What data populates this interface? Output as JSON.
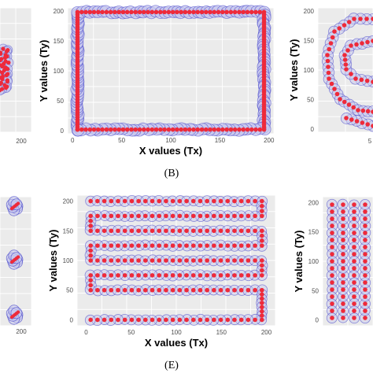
{
  "chart_data": [
    {
      "type": "scatter",
      "panel": "A",
      "xlabel": "",
      "ylabel": "",
      "x_ticks": [
        "200"
      ],
      "y_ticks": []
    },
    {
      "type": "scatter",
      "panel": "B",
      "caption": "(B)",
      "xlabel": "X values (Tx)",
      "ylabel": "Y values (Ty)",
      "xlim": [
        -5,
        205
      ],
      "ylim": [
        -5,
        205
      ],
      "x_ticks": [
        "0",
        "50",
        "100",
        "150",
        "200"
      ],
      "y_ticks": [
        "0",
        "50",
        "100",
        "150",
        "200"
      ],
      "path": "rectangle",
      "vertices": [
        [
          5,
          2
        ],
        [
          5,
          198
        ],
        [
          195,
          198
        ],
        [
          195,
          2
        ],
        [
          5,
          2
        ]
      ],
      "grid": true
    },
    {
      "type": "scatter",
      "panel": "C",
      "xlabel": "",
      "ylabel": "Y values (Ty)",
      "y_ticks": [
        "0",
        "50",
        "100",
        "150",
        "200"
      ],
      "x_ticks": [
        "5"
      ],
      "path": "spiral",
      "grid": true
    },
    {
      "type": "scatter",
      "panel": "D",
      "xlabel": "",
      "ylabel": "",
      "x_ticks": [
        "200"
      ],
      "clusters": 3
    },
    {
      "type": "scatter",
      "panel": "E",
      "caption": "(E)",
      "xlabel": "X values (Tx)",
      "ylabel": "Y values (Ty)",
      "xlim": [
        -10,
        210
      ],
      "ylim": [
        -10,
        210
      ],
      "x_ticks": [
        "0",
        "50",
        "100",
        "150",
        "200"
      ],
      "y_ticks": [
        "0",
        "50",
        "100",
        "150",
        "200"
      ],
      "path": "serpentine",
      "rows_y": [
        0,
        50,
        75,
        100,
        125,
        150,
        175,
        200
      ],
      "row_x_range": [
        5,
        195
      ],
      "grid": true
    },
    {
      "type": "scatter",
      "panel": "F",
      "xlabel": "",
      "ylabel": "Y values (Ty)",
      "y_ticks": [
        "0",
        "50",
        "100",
        "150",
        "200"
      ],
      "path": "vertical-serpentine",
      "grid": true
    }
  ],
  "colors": {
    "panel_bg": "#ebebeb",
    "grid": "#ffffff",
    "point": "#ee2a3a",
    "halo_fill": "#c8c8ee",
    "halo_stroke": "#3d3dc8"
  }
}
